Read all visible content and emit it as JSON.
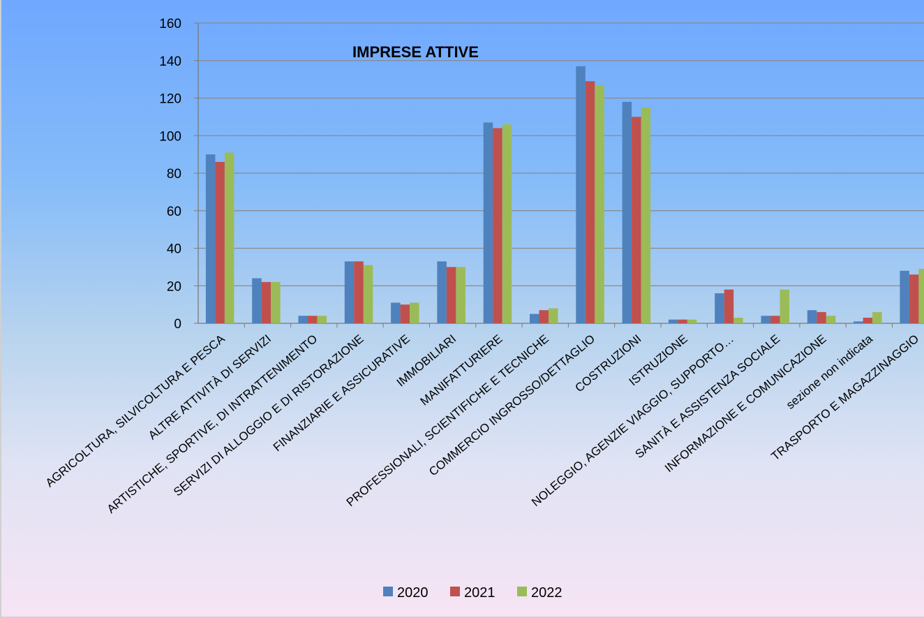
{
  "chart_data": {
    "type": "bar",
    "title": "IMPRESE ATTIVE",
    "xlabel": "",
    "ylabel": "",
    "ylim": [
      0,
      160
    ],
    "yticks": [
      0,
      20,
      40,
      60,
      80,
      100,
      120,
      140,
      160
    ],
    "grid": true,
    "legend_position": "bottom",
    "categories": [
      "AGRICOLTURA, SILVICOLTURA E PESCA",
      "ALTRE ATTIVITÀ DI SERVIZI",
      "ARTISTICHE, SPORTIVE, DI INTRATTENIMENTO",
      "SERVIZI DI ALLOGGIO E DI RISTORAZIONE",
      "FINANZIARIE E ASSICURATIVE",
      "IMMOBILIARI",
      "MANIFATTURIERE",
      "PROFESSIONALI, SCIENTIFICHE E TECNICHE",
      "COMMERCIO INGROSSO/DETTAGLIO",
      "COSTRUZIONI",
      "ISTRUZIONE",
      "NOLEGGIO, AGENZIE VIAGGIO, SUPPORTO…",
      "SANITÀ E ASSISTENZA SOCIALE",
      "INFORMAZIONE E COMUNICAZIONE",
      "sezione non indicata",
      "TRASPORTO E MAGAZZINAGGIO"
    ],
    "series": [
      {
        "name": "2020",
        "color": "#4f81bd",
        "values": [
          90,
          24,
          4,
          33,
          11,
          33,
          107,
          5,
          137,
          118,
          2,
          16,
          4,
          7,
          1,
          28
        ]
      },
      {
        "name": "2021",
        "color": "#c0504d",
        "values": [
          86,
          22,
          4,
          33,
          10,
          30,
          104,
          7,
          129,
          110,
          2,
          18,
          4,
          6,
          3,
          26
        ]
      },
      {
        "name": "2022",
        "color": "#9bbb59",
        "values": [
          91,
          22,
          4,
          31,
          11,
          30,
          106,
          8,
          127,
          115,
          2,
          3,
          18,
          4,
          6,
          29
        ]
      }
    ]
  }
}
